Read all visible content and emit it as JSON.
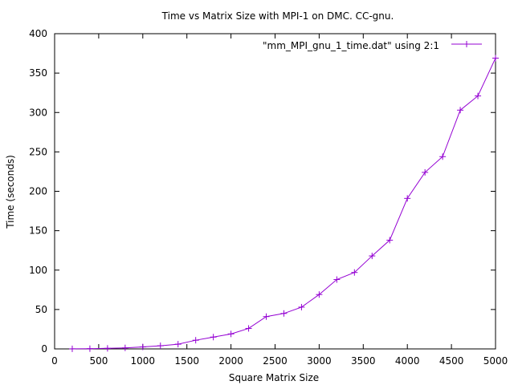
{
  "chart_data": {
    "type": "line",
    "title": "Time vs Matrix Size with MPI-1  on DMC. CC-gnu.",
    "xlabel": "Square Matrix Size",
    "ylabel": "Time (seconds)",
    "xlim": [
      0,
      5000
    ],
    "ylim": [
      0,
      400
    ],
    "xticks": [
      0,
      500,
      1000,
      1500,
      2000,
      2500,
      3000,
      3500,
      4000,
      4500,
      5000
    ],
    "yticks": [
      0,
      50,
      100,
      150,
      200,
      250,
      300,
      350,
      400
    ],
    "grid": false,
    "legend_position": "top-right",
    "series": [
      {
        "name": "\"mm_MPI_gnu_1_time.dat\" using 2:1",
        "color": "#9400d3",
        "marker": "plus",
        "x": [
          200,
          400,
          600,
          800,
          1000,
          1200,
          1400,
          1600,
          1800,
          2000,
          2200,
          2400,
          2600,
          2800,
          3000,
          3200,
          3400,
          3600,
          3800,
          4000,
          4200,
          4400,
          4600,
          4800,
          5000
        ],
        "y": [
          0.1,
          0.3,
          0.7,
          1.3,
          2.5,
          4,
          6,
          11,
          15,
          19,
          26,
          41,
          45,
          53,
          69,
          88,
          97,
          118,
          138,
          191,
          224,
          244,
          303,
          321,
          369
        ]
      }
    ]
  }
}
